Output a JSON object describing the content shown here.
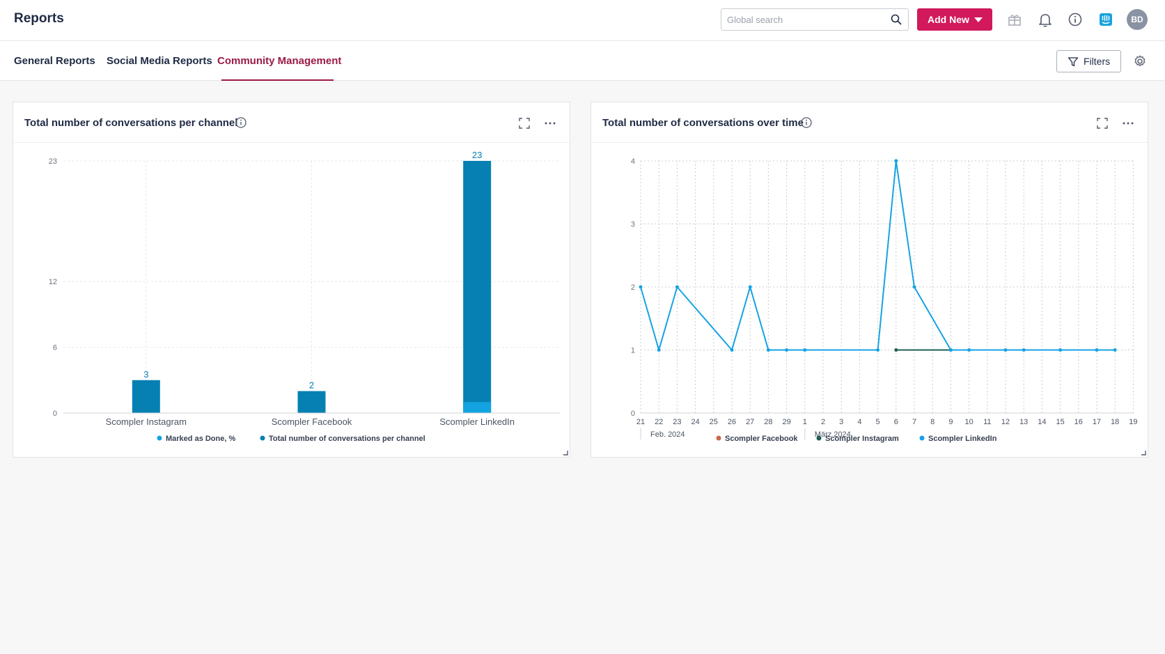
{
  "header": {
    "title": "Reports",
    "search_placeholder": "Global search",
    "add_new_label": "Add New",
    "avatar_initials": "BD",
    "icons": [
      "gift-icon",
      "bell-icon",
      "info-icon",
      "intercom-icon",
      "chevron-down-icon",
      "search-icon"
    ]
  },
  "tabs": [
    {
      "label": "General Reports",
      "active": false
    },
    {
      "label": "Social Media Reports",
      "active": false
    },
    {
      "label": "Community Management",
      "active": true
    }
  ],
  "toolbar": {
    "filters_label": "Filters"
  },
  "colors": {
    "accent": "#d1195b",
    "active_tab": "#9c1a47",
    "bar_dark": "#0680b3",
    "bar_light": "#12a3e0",
    "facebook": "#c8694a",
    "instagram": "#1e5e55",
    "linkedin": "#16a2e3"
  },
  "cards": [
    {
      "title": "Total number of conversations per channel"
    },
    {
      "title": "Total number of conversations over time"
    }
  ],
  "chart_data": [
    {
      "type": "bar",
      "title": "Total number of conversations per channel",
      "categories": [
        "Scompler Instagram",
        "Scompler Facebook",
        "Scompler LinkedIn"
      ],
      "series": [
        {
          "name": "Total number of conversations per channel",
          "values": [
            3,
            2,
            23
          ]
        },
        {
          "name": "Marked as Done, %",
          "values": [
            0,
            0,
            1
          ]
        }
      ],
      "data_labels": [
        "3",
        "2",
        "23"
      ],
      "y_ticks": [
        0,
        6,
        12,
        23
      ],
      "ylim": [
        0,
        23
      ],
      "legend": [
        "Marked as Done, %",
        "Total number of conversations per channel"
      ],
      "legend_position": "bottom",
      "grid": true
    },
    {
      "type": "line",
      "title": "Total number of conversations over time",
      "x_ticks": [
        "21",
        "22",
        "23",
        "24",
        "25",
        "26",
        "27",
        "28",
        "29",
        "1",
        "2",
        "3",
        "4",
        "5",
        "6",
        "7",
        "8",
        "9",
        "10",
        "11",
        "12",
        "13",
        "14",
        "15",
        "16",
        "17",
        "18",
        "19"
      ],
      "month_labels": [
        {
          "label": "Feb. 2024",
          "start_index": 0
        },
        {
          "label": "März 2024",
          "start_index": 9
        }
      ],
      "y_ticks": [
        0,
        1,
        2,
        3,
        4
      ],
      "ylim": [
        0,
        4
      ],
      "series": [
        {
          "name": "Scompler Facebook",
          "points": []
        },
        {
          "name": "Scompler Instagram",
          "points": [
            [
              14,
              1
            ],
            [
              17,
              1
            ]
          ]
        },
        {
          "name": "Scompler LinkedIn",
          "points": [
            [
              0,
              2
            ],
            [
              1,
              1
            ],
            [
              2,
              2
            ],
            [
              5,
              1
            ],
            [
              6,
              2
            ],
            [
              7,
              1
            ],
            [
              8,
              1
            ],
            [
              9,
              1
            ],
            [
              13,
              1
            ],
            [
              14,
              4
            ],
            [
              15,
              2
            ],
            [
              17,
              1
            ],
            [
              18,
              1
            ],
            [
              20,
              1
            ],
            [
              21,
              1
            ],
            [
              23,
              1
            ],
            [
              25,
              1
            ],
            [
              26,
              1
            ]
          ]
        }
      ],
      "legend": [
        "Scompler Facebook",
        "Scompler Instagram",
        "Scompler LinkedIn"
      ],
      "legend_position": "bottom",
      "grid": true
    }
  ]
}
